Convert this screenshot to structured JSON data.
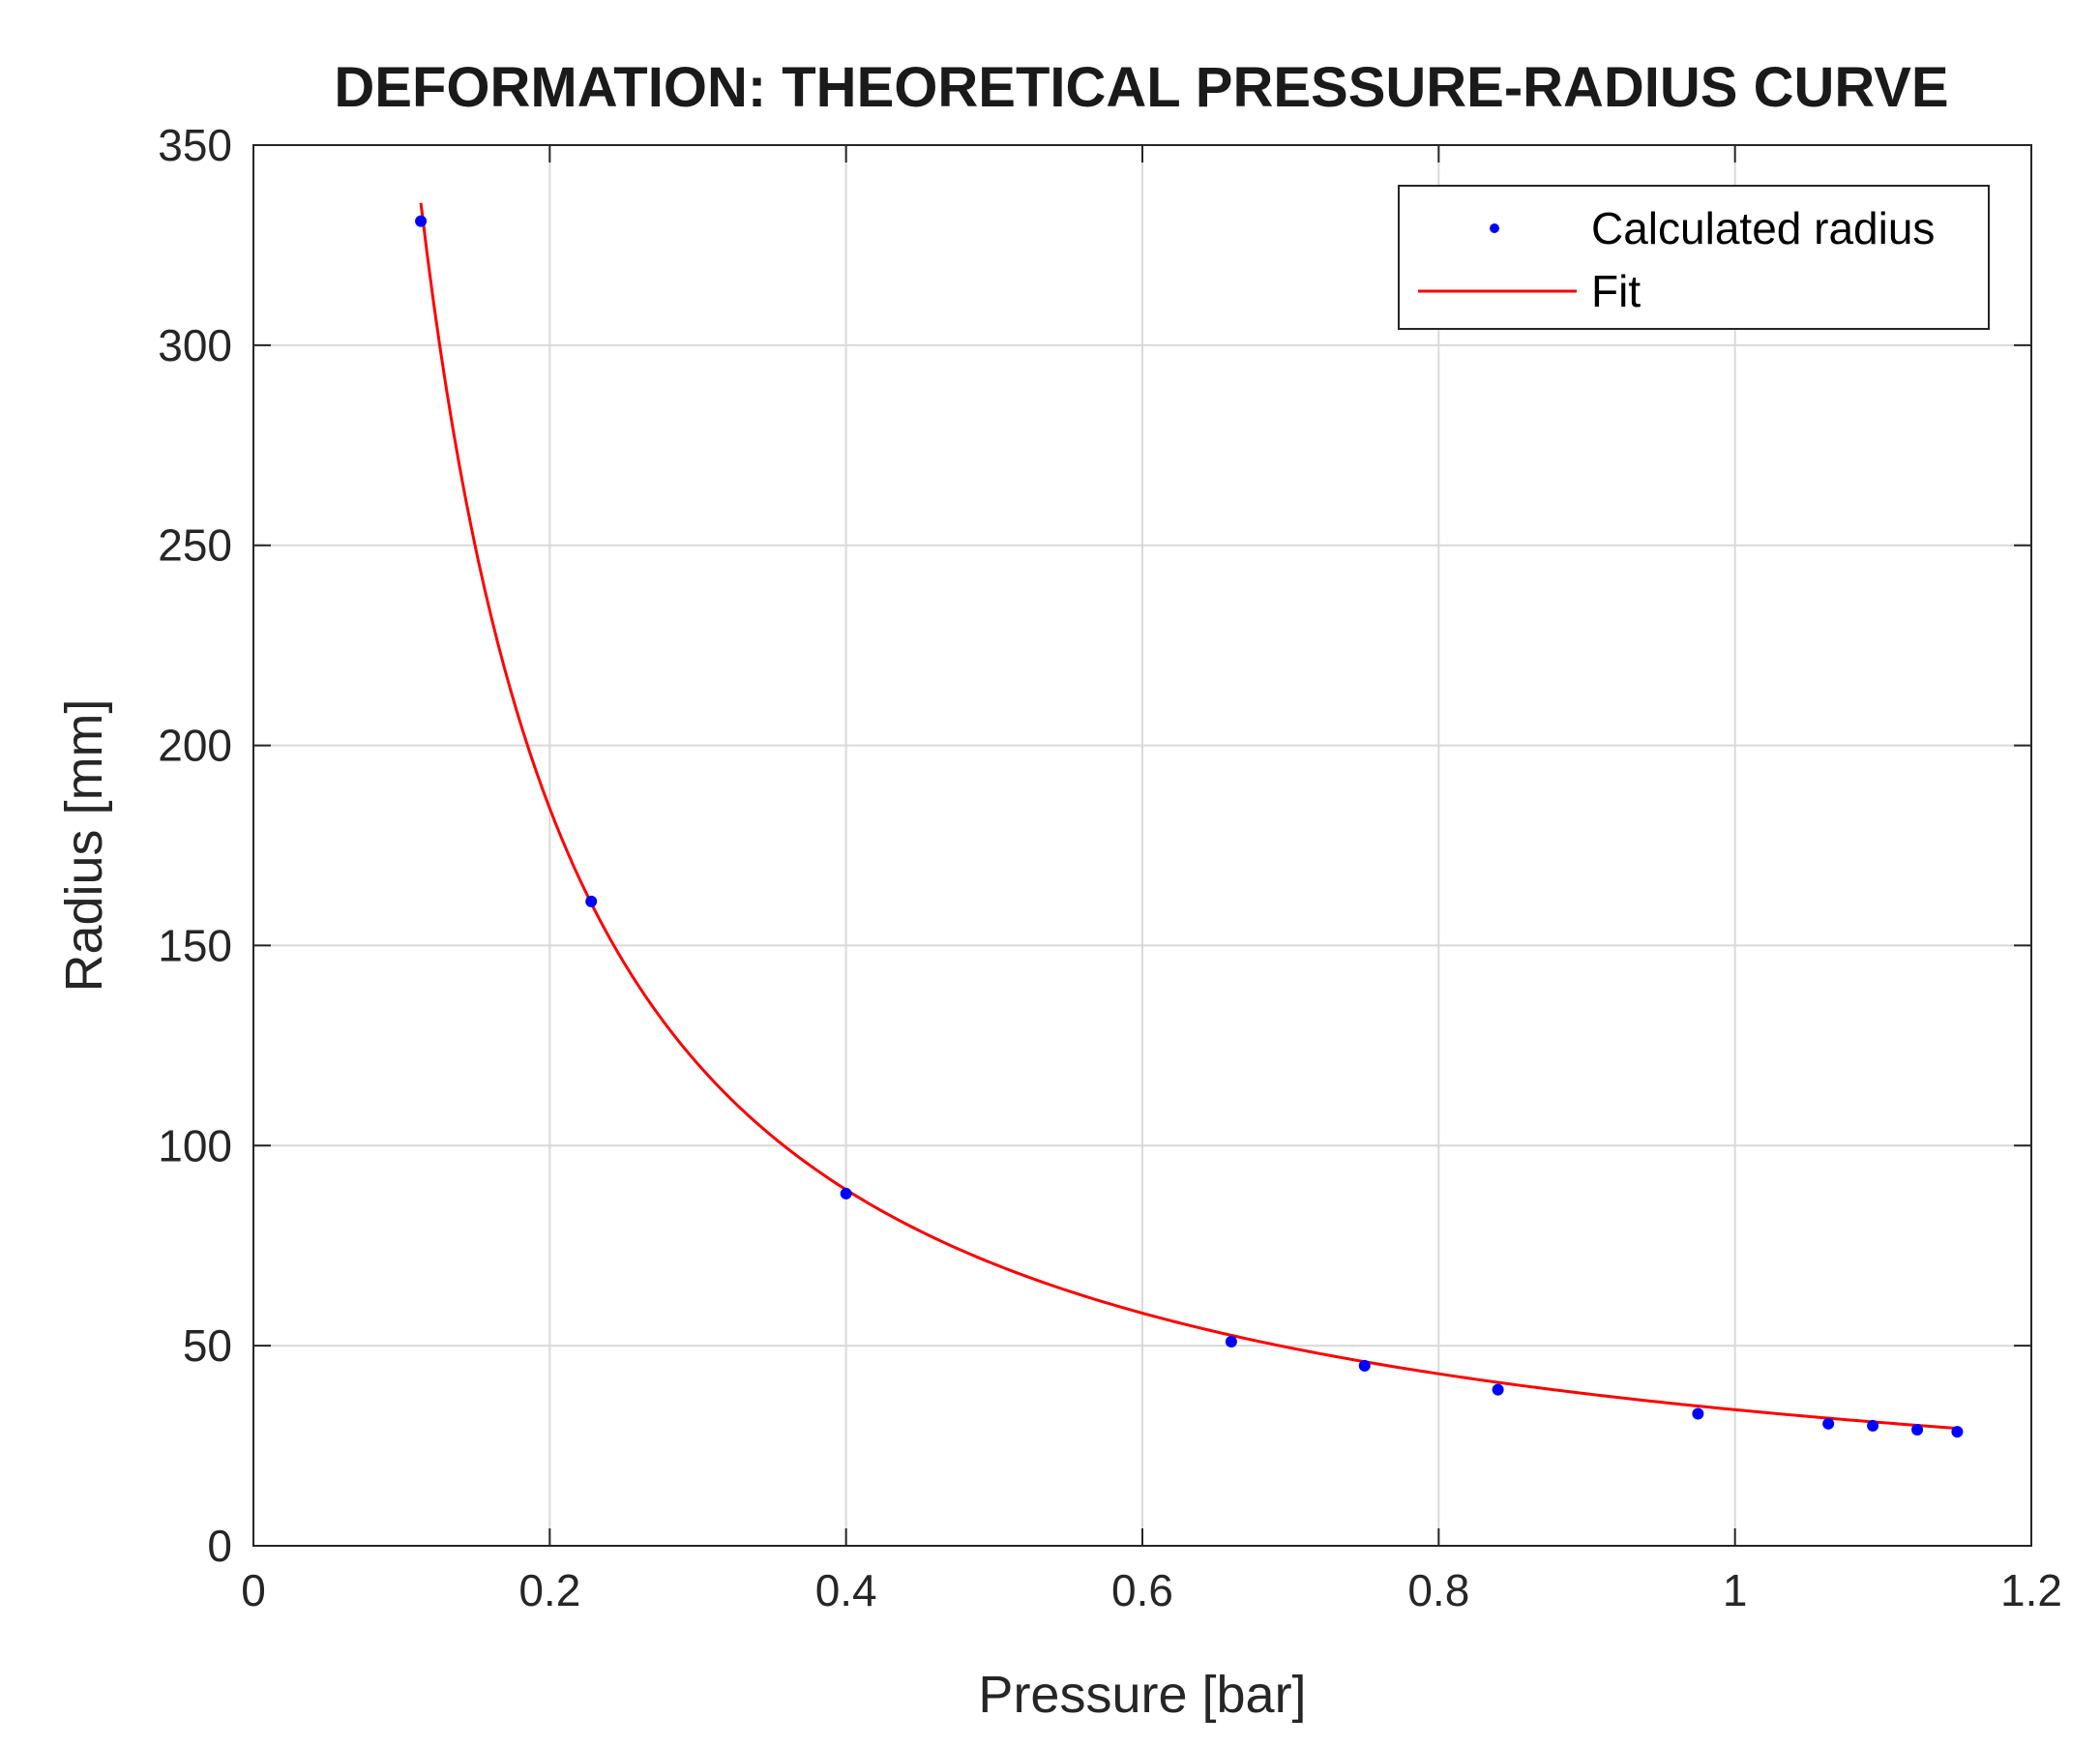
{
  "chart_data": {
    "type": "scatter",
    "title": "DEFORMATION: THEORETICAL PRESSURE-RADIUS CURVE",
    "xlabel": "Pressure [bar]",
    "ylabel": "Radius [mm]",
    "xlim": [
      0,
      1.2
    ],
    "ylim": [
      0,
      350
    ],
    "xticks": [
      0,
      0.2,
      0.4,
      0.6,
      0.8,
      1,
      1.2
    ],
    "xtick_labels": [
      "0",
      "0.2",
      "0.4",
      "0.6",
      "0.8",
      "1",
      "1.2"
    ],
    "yticks": [
      0,
      50,
      100,
      150,
      200,
      250,
      300,
      350
    ],
    "ytick_labels": [
      "0",
      "50",
      "100",
      "150",
      "200",
      "250",
      "300",
      "350"
    ],
    "grid": true,
    "legend_position": "top-right",
    "series": [
      {
        "name": "Calculated radius",
        "style": "markers",
        "color": "#0000ff",
        "x": [
          0.113,
          0.228,
          0.4,
          0.66,
          0.75,
          0.84,
          0.975,
          1.063,
          1.093,
          1.123,
          1.15
        ],
        "y": [
          331,
          161,
          88,
          51,
          45,
          39,
          33,
          30.5,
          30,
          29,
          28.5
        ]
      },
      {
        "name": "Fit",
        "style": "line",
        "color": "#ff0000",
        "model": "y = a * x^b",
        "a": 34.0,
        "b": -1.05,
        "x_range": [
          0.113,
          1.15
        ]
      }
    ]
  }
}
